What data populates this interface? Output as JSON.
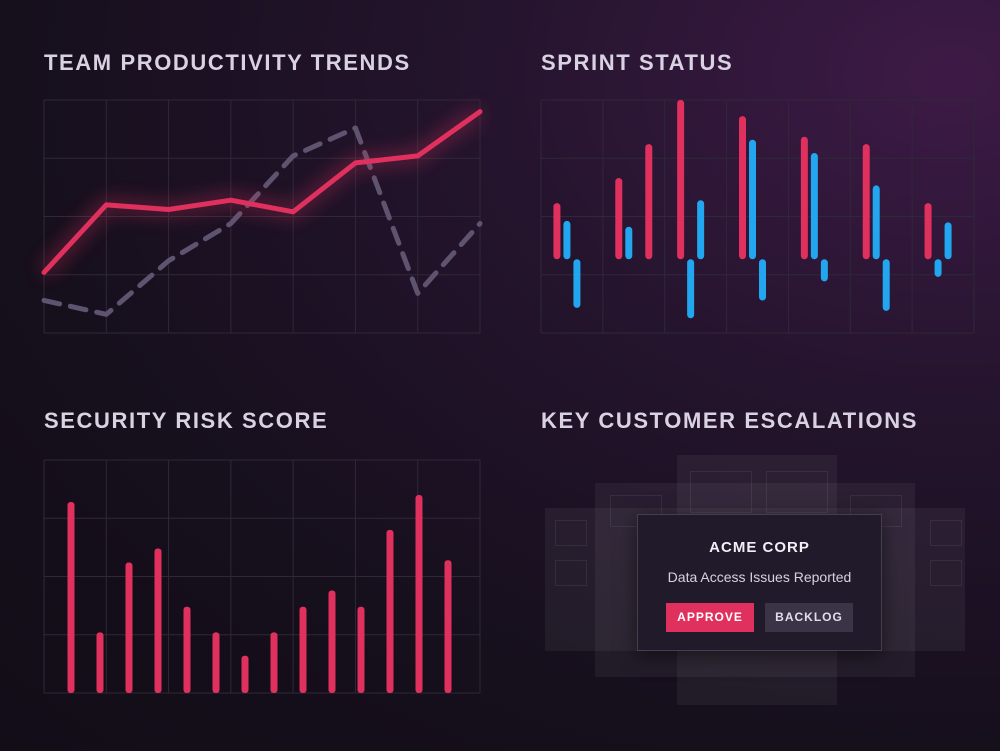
{
  "colors": {
    "pink": "#e0305e",
    "blue": "#23a6f0",
    "dashed": "#5e5470",
    "grid": "#2f2838"
  },
  "panels": {
    "productivity_title": "TEAM PRODUCTIVITY TRENDS",
    "sprint_title": "SPRINT STATUS",
    "security_title": "SECURITY RISK SCORE",
    "escalations_title": "KEY CUSTOMER ESCALATIONS"
  },
  "escalation_card": {
    "company": "ACME CORP",
    "issue": "Data Access Issues Reported",
    "approve_label": "APPROVE",
    "backlog_label": "BACKLOG"
  },
  "chart_data": [
    {
      "id": "productivity",
      "type": "line",
      "ylim": [
        0,
        100
      ],
      "x": [
        0,
        1,
        2,
        3,
        4,
        5,
        6,
        7
      ],
      "grid": true,
      "series": [
        {
          "values": [
            26,
            55,
            53,
            57,
            52,
            73,
            76,
            95
          ],
          "style": "solid",
          "color": "#e0305e"
        },
        {
          "values": [
            14,
            8,
            31,
            47,
            76,
            88,
            17,
            47
          ],
          "style": "dashed",
          "color": "#5e5470"
        }
      ]
    },
    {
      "id": "sprint",
      "type": "bar",
      "ylim": [
        -50,
        100
      ],
      "grid": true,
      "groups": [
        {
          "pink": [
            38,
            null
          ],
          "blue": [
            26,
            -33
          ]
        },
        {
          "pink": [
            55,
            78
          ],
          "blue": [
            22,
            null
          ]
        },
        {
          "pink": [
            108,
            null
          ],
          "blue": [
            -40,
            40
          ]
        },
        {
          "pink": [
            97,
            null
          ],
          "blue": [
            81,
            -28
          ]
        },
        {
          "pink": [
            83,
            null
          ],
          "blue": [
            72,
            -15
          ]
        },
        {
          "pink": [
            78,
            null
          ],
          "blue": [
            50,
            -35
          ]
        },
        {
          "pink": [
            38,
            null
          ],
          "blue": [
            -12,
            25
          ]
        }
      ]
    },
    {
      "id": "security",
      "type": "bar",
      "ylim": [
        0,
        100
      ],
      "grid": true,
      "values": [
        82,
        26,
        56,
        62,
        37,
        26,
        16,
        26,
        37,
        44,
        37,
        70,
        85,
        57
      ]
    }
  ]
}
